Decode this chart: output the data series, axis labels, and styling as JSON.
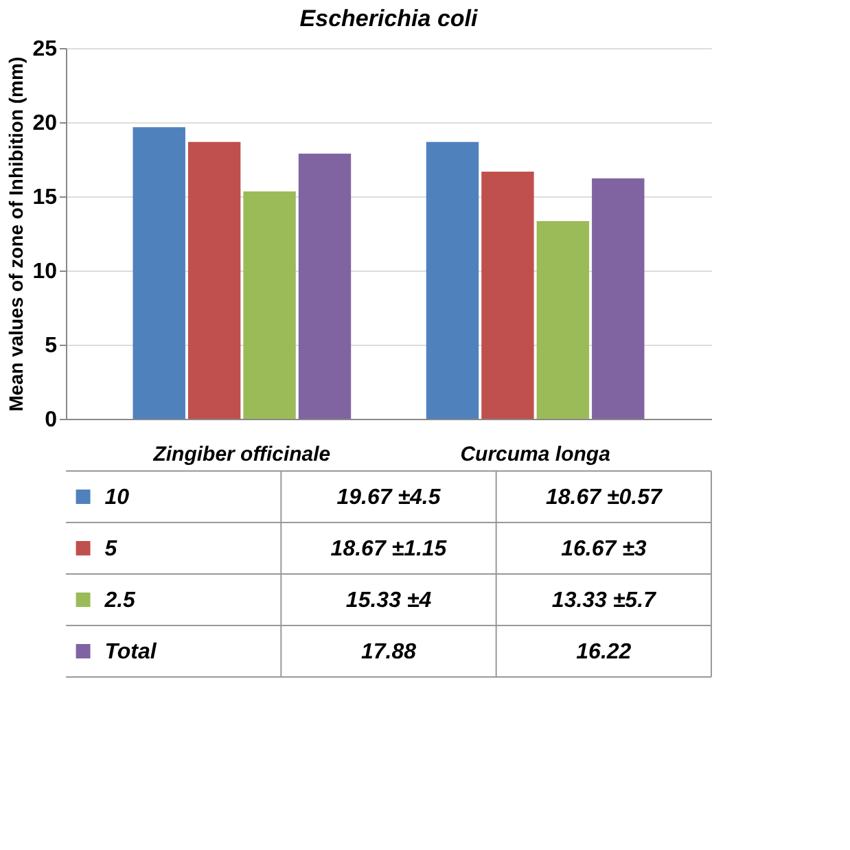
{
  "chart_data": {
    "type": "bar",
    "title": "Escherichia coli",
    "ylabel": "Mean values of zone of Inhibition (mm)",
    "categories": [
      "Zingiber officinale",
      "Curcuma longa"
    ],
    "series": [
      {
        "name": "10",
        "color": "#4f81bd",
        "values": [
          19.67,
          18.67
        ],
        "value_labels": [
          "19.67 ±4.5",
          "18.67 ±0.57"
        ]
      },
      {
        "name": "5",
        "color": "#c0504d",
        "values": [
          18.67,
          16.67
        ],
        "value_labels": [
          "18.67 ±1.15",
          "16.67 ±3"
        ]
      },
      {
        "name": "2.5",
        "color": "#9bbb59",
        "values": [
          15.33,
          13.33
        ],
        "value_labels": [
          "15.33 ±4",
          "13.33 ±5.7"
        ]
      },
      {
        "name": "Total",
        "color": "#8064a2",
        "values": [
          17.88,
          16.22
        ],
        "value_labels": [
          "17.88",
          "16.22"
        ]
      }
    ],
    "ylim": [
      0,
      25
    ],
    "yticks": [
      0,
      5,
      10,
      15,
      20,
      25
    ],
    "grid": "y",
    "legend": "bottom"
  }
}
